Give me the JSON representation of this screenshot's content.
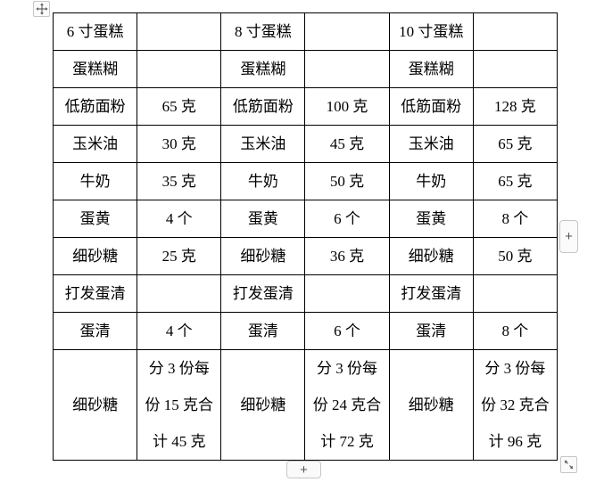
{
  "page": {
    "background": "#ffffff"
  },
  "colors": {
    "table_border": "#000000",
    "text": "#000000",
    "control_border": "#c6c6c6",
    "control_background": "#fafafa",
    "control_icon": "#555555"
  },
  "icons": {
    "move_handle": "move-icon",
    "add_column": "plus-icon",
    "add_row": "plus-icon",
    "resize_handle": "diagonal-resize-icon"
  },
  "controls": {
    "add_column_label": "+",
    "add_row_label": "+"
  },
  "table": {
    "columns": 6,
    "rows": [
      {
        "cells": [
          "6 寸蛋糕",
          "",
          "8 寸蛋糕",
          "",
          "10 寸蛋糕",
          ""
        ]
      },
      {
        "cells": [
          "蛋糕糊",
          "",
          "蛋糕糊",
          "",
          "蛋糕糊",
          ""
        ]
      },
      {
        "cells": [
          "低筋面粉",
          "65 克",
          "低筋面粉",
          "100 克",
          "低筋面粉",
          "128 克"
        ]
      },
      {
        "cells": [
          "玉米油",
          "30 克",
          "玉米油",
          "45 克",
          "玉米油",
          "65 克"
        ]
      },
      {
        "cells": [
          "牛奶",
          "35 克",
          "牛奶",
          "50 克",
          "牛奶",
          "65 克"
        ]
      },
      {
        "cells": [
          "蛋黄",
          "4 个",
          "蛋黄",
          "6 个",
          "蛋黄",
          "8 个"
        ]
      },
      {
        "cells": [
          "细砂糖",
          "25 克",
          "细砂糖",
          "36 克",
          "细砂糖",
          "50 克"
        ]
      },
      {
        "cells": [
          "打发蛋清",
          "",
          "打发蛋清",
          "",
          "打发蛋清",
          ""
        ]
      },
      {
        "cells": [
          "蛋清",
          "4 个",
          "蛋清",
          "6 个",
          "蛋清",
          "8 个"
        ]
      },
      {
        "cells": [
          "细砂糖",
          "分 3 份每\n份 15 克合\n计 45 克",
          "细砂糖",
          "分 3 份每\n份 24 克合\n计 72 克",
          "细砂糖",
          "分 3 份每\n份 32 克合\n计 96 克"
        ]
      }
    ]
  }
}
